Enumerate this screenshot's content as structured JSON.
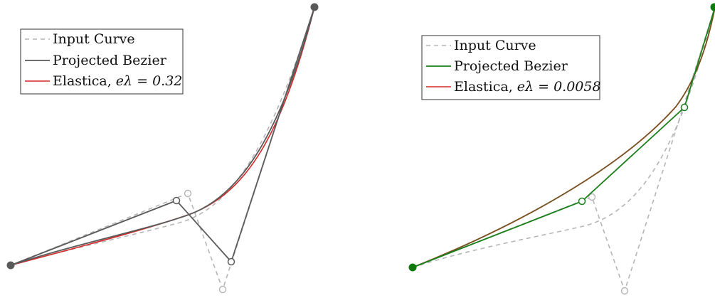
{
  "colors": {
    "input_curve": "#b5b5b5",
    "gray_bezier": "#5a5a5a",
    "green_bezier": "#1a7f1a",
    "elastica_red": "#d62728",
    "elastica_dark": "#8a3a10",
    "endpoint_gray": "#5a5a5a",
    "endpoint_green": "#0e7a0e"
  },
  "left_panel": {
    "legend": {
      "input_label": "Input Curve",
      "bezier_label": "Projected Bezier",
      "elastica_prefix": "Elastica, ",
      "elastica_math": "eλ = 0.32"
    }
  },
  "right_panel": {
    "legend": {
      "input_label": "Input Curve",
      "bezier_label": "Projected Bezier",
      "elastica_prefix": "Elastica, ",
      "elastica_math": "eλ = 0.0058"
    }
  }
}
